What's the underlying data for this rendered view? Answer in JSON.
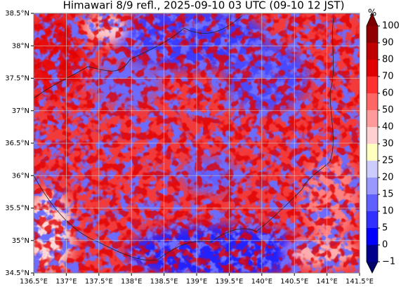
{
  "map": {
    "title": "Himawari 8/9 refl., 2025-09-10 03 UTC (09-10 12 JST)",
    "xlim": [
      136.5,
      141.5
    ],
    "ylim": [
      34.5,
      38.5
    ],
    "xticks": [
      {
        "value": 136.5,
        "label": "136.5°E"
      },
      {
        "value": 137,
        "label": "137°E"
      },
      {
        "value": 137.5,
        "label": "137.5°E"
      },
      {
        "value": 138,
        "label": "138°E"
      },
      {
        "value": 138.5,
        "label": "138.5°E"
      },
      {
        "value": 139,
        "label": "139°E"
      },
      {
        "value": 139.5,
        "label": "139.5°E"
      },
      {
        "value": 140,
        "label": "140°E"
      },
      {
        "value": 140.5,
        "label": "140.5°E"
      },
      {
        "value": 141,
        "label": "141°E"
      },
      {
        "value": 141.5,
        "label": "141.5°E"
      }
    ],
    "yticks": [
      {
        "value": 34.5,
        "label": "34.5°N"
      },
      {
        "value": 35,
        "label": "35°N"
      },
      {
        "value": 35.5,
        "label": "35.5°N"
      },
      {
        "value": 36,
        "label": "36°N"
      },
      {
        "value": 36.5,
        "label": "36.5°N"
      },
      {
        "value": 37,
        "label": "37°N"
      },
      {
        "value": 37.5,
        "label": "37.5°N"
      },
      {
        "value": 38,
        "label": "38°N"
      },
      {
        "value": 38.5,
        "label": "38.5°N"
      }
    ],
    "grid": true,
    "colorbar": {
      "unit": "%",
      "levels": [
        {
          "value": -1,
          "label": "−1"
        },
        0,
        5,
        10,
        15,
        20,
        25,
        30,
        40,
        50,
        60,
        70,
        80,
        90,
        100
      ],
      "colors": [
        "#00008c",
        "#0000ff",
        "#3030ff",
        "#6060ff",
        "#9898ff",
        "#ccccff",
        "#ffffc0",
        "#ffd0d0",
        "#ff9a9a",
        "#ff6666",
        "#ff3030",
        "#e00000",
        "#c00000",
        "#900000"
      ],
      "under_color": "#00006a",
      "over_color": "#7a0000"
    }
  }
}
